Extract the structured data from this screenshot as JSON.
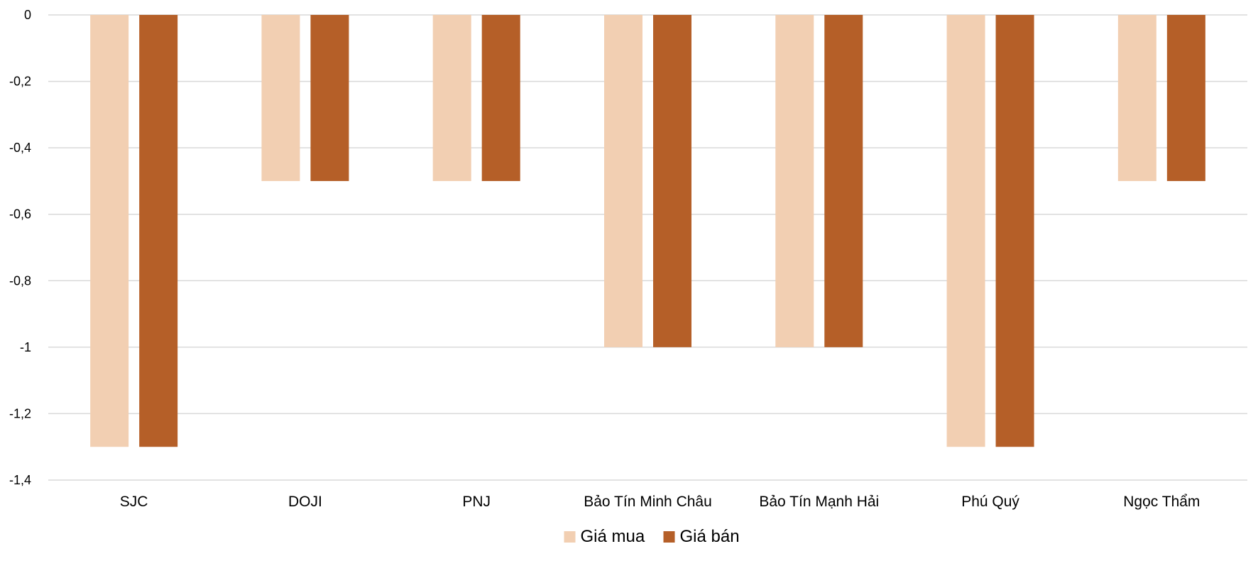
{
  "chart_data": {
    "type": "bar",
    "title": "",
    "xlabel": "",
    "ylabel": "",
    "categories": [
      "SJC",
      "DOJI",
      "PNJ",
      "Bảo Tín Minh Châu",
      "Bảo Tín Mạnh Hải",
      "Phú Quý",
      "Ngọc Thẩm"
    ],
    "series": [
      {
        "name": "Giá mua",
        "color": "#f2cfb2",
        "values": [
          -1.3,
          -0.5,
          -0.5,
          -1.0,
          -1.0,
          -1.3,
          -0.5
        ]
      },
      {
        "name": "Giá bán",
        "color": "#b55f28",
        "values": [
          -1.3,
          -0.5,
          -0.5,
          -1.0,
          -1.0,
          -1.3,
          -0.5
        ]
      }
    ],
    "ylim": [
      -1.4,
      0
    ],
    "yticks": [
      0,
      -0.2,
      -0.4,
      -0.6,
      -0.8,
      -1,
      -1.2,
      -1.4
    ],
    "ytick_labels": [
      "0",
      "-0,2",
      "-0,4",
      "-0,6",
      "-0,8",
      "-1",
      "-1,2",
      "-1,4"
    ],
    "grid": true,
    "gridline_color": "#d9d9d9",
    "legend_position": "bottom"
  }
}
